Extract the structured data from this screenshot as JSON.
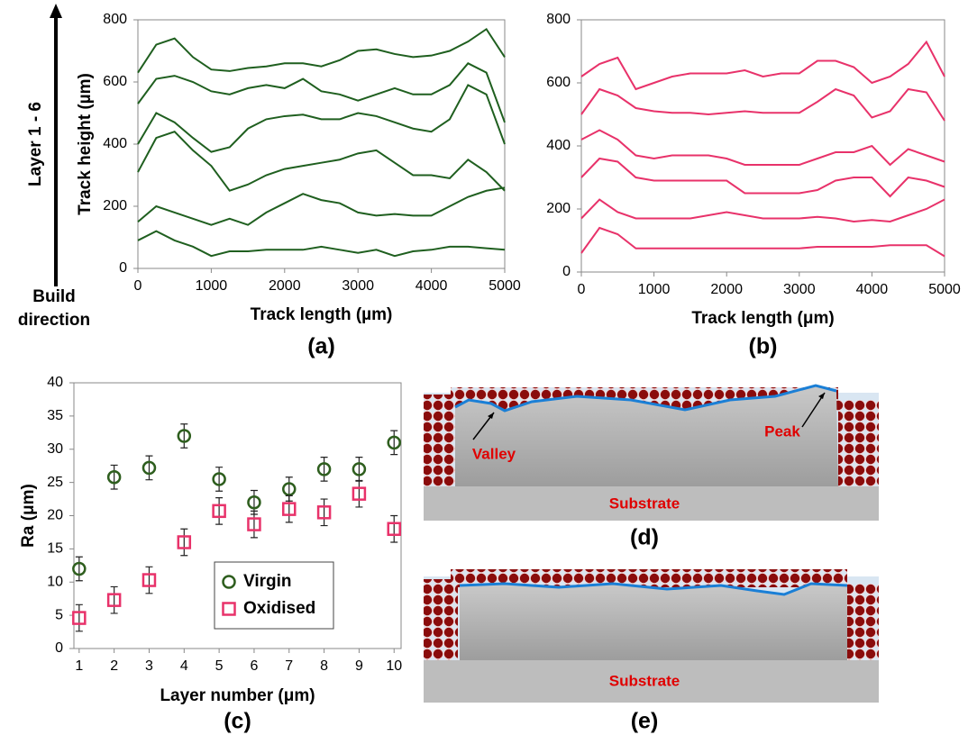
{
  "chart_data": [
    {
      "type": "line",
      "label": "(a)",
      "xlabel": "Track length (µm)",
      "ylabel": "Track height (µm)",
      "side_label": "Layer 1 - 6",
      "direction_label": [
        "Build",
        "direction"
      ],
      "x": [
        0,
        250,
        500,
        750,
        1000,
        1250,
        1500,
        1750,
        2000,
        2250,
        2500,
        2750,
        3000,
        3250,
        3500,
        3750,
        4000,
        4250,
        4500,
        4750,
        5000
      ],
      "xlim": [
        0,
        5000
      ],
      "xticks": [
        0,
        1000,
        2000,
        3000,
        4000,
        5000
      ],
      "ylim": [
        0,
        800
      ],
      "yticks": [
        0,
        200,
        400,
        600,
        800
      ],
      "grid": false,
      "series": [
        {
          "color": "#1f5f1f",
          "values": [
            630,
            720,
            740,
            680,
            640,
            635,
            645,
            650,
            660,
            660,
            650,
            670,
            700,
            705,
            690,
            680,
            685,
            700,
            730,
            770,
            680
          ]
        },
        {
          "color": "#1f5f1f",
          "values": [
            530,
            610,
            620,
            600,
            570,
            560,
            580,
            590,
            580,
            610,
            570,
            560,
            540,
            560,
            580,
            560,
            560,
            590,
            660,
            630,
            470
          ]
        },
        {
          "color": "#1f5f1f",
          "values": [
            400,
            500,
            470,
            420,
            375,
            390,
            450,
            480,
            490,
            495,
            480,
            480,
            500,
            490,
            470,
            450,
            440,
            480,
            590,
            560,
            400
          ]
        },
        {
          "color": "#1f5f1f",
          "values": [
            310,
            420,
            440,
            380,
            330,
            250,
            270,
            300,
            320,
            330,
            340,
            350,
            370,
            380,
            340,
            300,
            300,
            290,
            350,
            310,
            250
          ]
        },
        {
          "color": "#1f5f1f",
          "values": [
            150,
            200,
            180,
            160,
            140,
            160,
            140,
            180,
            210,
            240,
            220,
            210,
            180,
            170,
            175,
            170,
            170,
            200,
            230,
            250,
            260
          ]
        },
        {
          "color": "#1f5f1f",
          "values": [
            90,
            120,
            90,
            70,
            40,
            55,
            55,
            60,
            60,
            60,
            70,
            60,
            50,
            60,
            40,
            55,
            60,
            70,
            70,
            65,
            60
          ]
        }
      ]
    },
    {
      "type": "line",
      "label": "(b)",
      "xlabel": "Track length (μm)",
      "x": [
        0,
        250,
        500,
        750,
        1000,
        1250,
        1500,
        1750,
        2000,
        2250,
        2500,
        2750,
        3000,
        3250,
        3500,
        3750,
        4000,
        4250,
        4500,
        4750,
        5000
      ],
      "xlim": [
        0,
        5000
      ],
      "xticks": [
        0,
        1000,
        2000,
        3000,
        4000,
        5000
      ],
      "ylim": [
        0,
        800
      ],
      "yticks": [
        0,
        200,
        400,
        600,
        800
      ],
      "grid": false,
      "series": [
        {
          "color": "#e8326a",
          "values": [
            620,
            660,
            680,
            580,
            600,
            620,
            630,
            630,
            630,
            640,
            620,
            630,
            630,
            670,
            670,
            650,
            600,
            620,
            660,
            730,
            620
          ]
        },
        {
          "color": "#e8326a",
          "values": [
            500,
            580,
            560,
            520,
            510,
            505,
            505,
            500,
            505,
            510,
            505,
            505,
            505,
            540,
            580,
            560,
            490,
            510,
            580,
            570,
            480
          ]
        },
        {
          "color": "#e8326a",
          "values": [
            420,
            450,
            420,
            370,
            360,
            370,
            370,
            370,
            360,
            340,
            340,
            340,
            340,
            360,
            380,
            380,
            400,
            340,
            390,
            370,
            350
          ]
        },
        {
          "color": "#e8326a",
          "values": [
            300,
            360,
            350,
            300,
            290,
            290,
            290,
            290,
            290,
            250,
            250,
            250,
            250,
            260,
            290,
            300,
            300,
            240,
            300,
            290,
            270
          ]
        },
        {
          "color": "#e8326a",
          "values": [
            170,
            230,
            190,
            170,
            170,
            170,
            170,
            180,
            190,
            180,
            170,
            170,
            170,
            175,
            170,
            160,
            165,
            160,
            180,
            200,
            230
          ]
        },
        {
          "color": "#e8326a",
          "values": [
            60,
            140,
            120,
            75,
            75,
            75,
            75,
            75,
            75,
            75,
            75,
            75,
            75,
            80,
            80,
            80,
            80,
            85,
            85,
            85,
            50
          ]
        }
      ]
    },
    {
      "type": "scatter",
      "label": "(c)",
      "xlabel": "Layer number (μm)",
      "ylabel": "Ra (μm)",
      "x": [
        1,
        2,
        3,
        4,
        5,
        6,
        7,
        8,
        9,
        10
      ],
      "xlim": [
        0.85,
        10.2
      ],
      "xticks": [
        1,
        2,
        3,
        4,
        5,
        6,
        7,
        8,
        9,
        10
      ],
      "ylim": [
        0,
        40
      ],
      "yticks": [
        0,
        5,
        10,
        15,
        20,
        25,
        30,
        35,
        40
      ],
      "grid": false,
      "legend": "lower-right",
      "series": [
        {
          "name": "Virgin",
          "color": "#2e5e1e",
          "marker": "circle",
          "values": [
            12,
            25.8,
            27.2,
            32,
            25.5,
            22,
            24,
            27,
            27,
            31
          ],
          "errors": [
            1.8,
            1.8,
            1.8,
            1.8,
            1.8,
            1.8,
            1.8,
            1.8,
            1.8,
            1.8
          ]
        },
        {
          "name": "Oxidised",
          "color": "#e8326a",
          "marker": "square",
          "values": [
            4.6,
            7.3,
            10.3,
            16,
            20.7,
            18.7,
            21,
            20.5,
            23.3,
            18
          ],
          "errors": [
            2,
            2,
            2,
            2,
            2,
            2,
            2,
            2,
            2,
            2
          ]
        }
      ]
    }
  ],
  "images": [
    {
      "label": "(d)",
      "valley": "Valley",
      "peak": "Peak",
      "substrate": "Substrate"
    },
    {
      "label": "(e)",
      "substrate": "Substrate"
    }
  ]
}
